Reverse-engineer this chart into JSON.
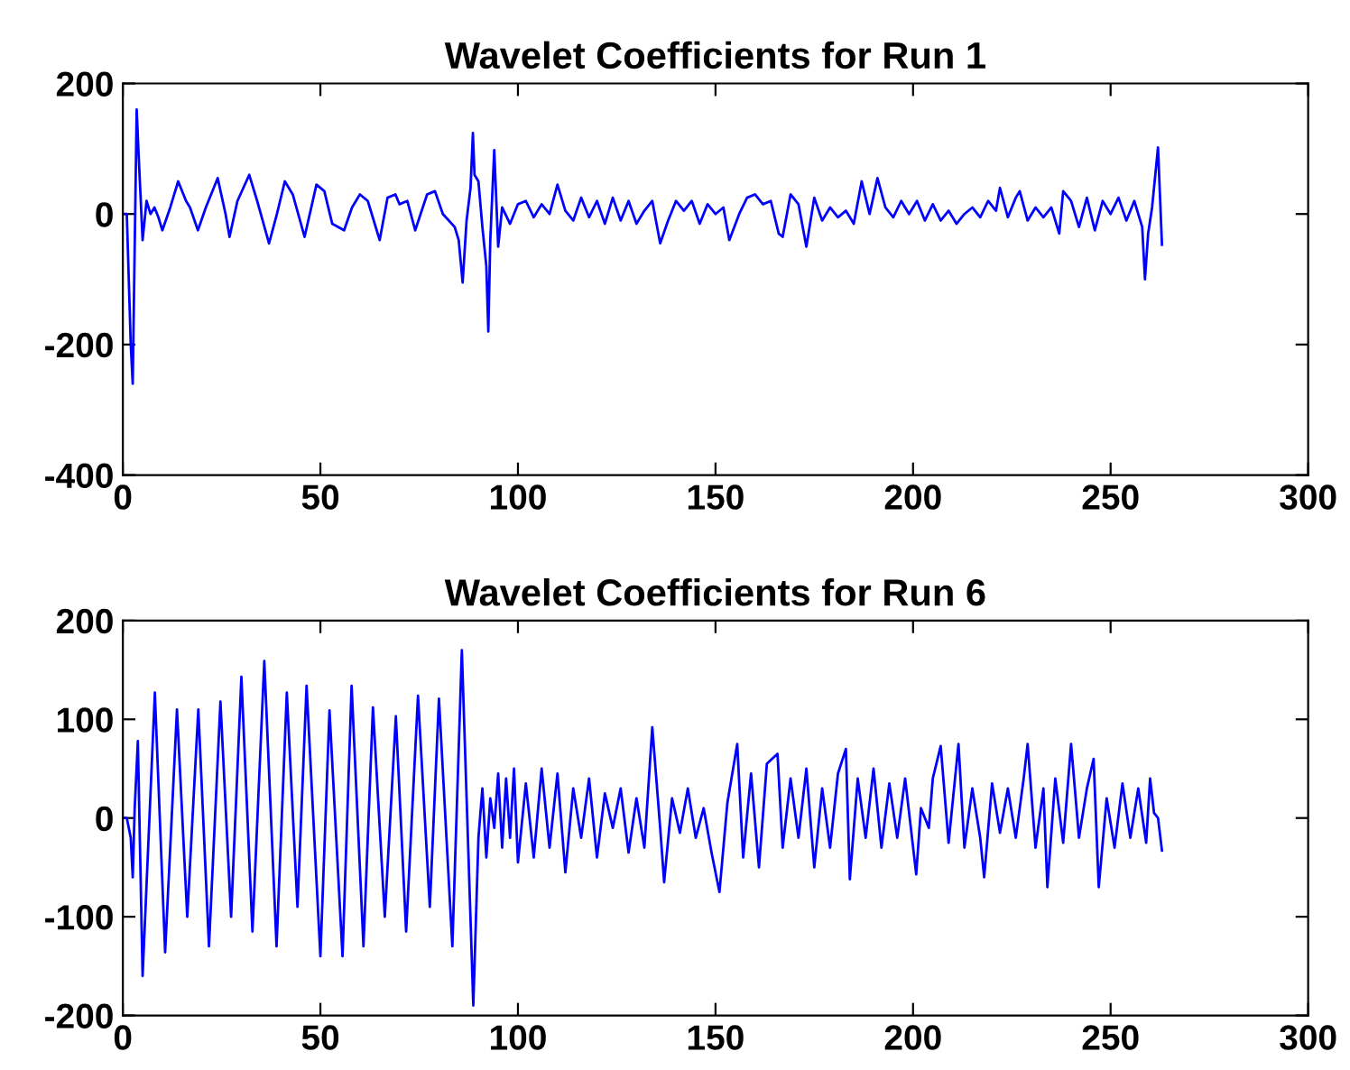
{
  "chart_data": [
    {
      "type": "line",
      "title": "Wavelet Coefficients for Run 1",
      "xlim": [
        0,
        300
      ],
      "xticks": [
        0,
        50,
        100,
        150,
        200,
        250,
        300
      ],
      "ylim": [
        -400,
        200
      ],
      "yticks": [
        -400,
        -200,
        0,
        200
      ],
      "grid": false,
      "series": [
        {
          "color": "#0000ff",
          "x": [
            0,
            1,
            2,
            2.5,
            3,
            3.5,
            4,
            5,
            6,
            7,
            8,
            9,
            10,
            12,
            14,
            16,
            17,
            19,
            21,
            24,
            26,
            27,
            29,
            32,
            34,
            37,
            39,
            41,
            43,
            46,
            49,
            51,
            53,
            56,
            58,
            60,
            62,
            65,
            67,
            69,
            70,
            72,
            74,
            77,
            79,
            81,
            84,
            85,
            86,
            87,
            88,
            88.6,
            89,
            90,
            91,
            92,
            92.5,
            93,
            94,
            95,
            96,
            98,
            100,
            102,
            104,
            106,
            108,
            110,
            112,
            114,
            116,
            118,
            120,
            122,
            124,
            126,
            128,
            130,
            132,
            134,
            136,
            138,
            140,
            142,
            144,
            146,
            148,
            150,
            152,
            153.5,
            156,
            158,
            160,
            162,
            164,
            166,
            167,
            169,
            171,
            173,
            175,
            177,
            179,
            181,
            183,
            185,
            187,
            189,
            191,
            193,
            195,
            197,
            199,
            201,
            203,
            205,
            207,
            209,
            211,
            213,
            215,
            217,
            219,
            221,
            222,
            224,
            226,
            227,
            229,
            231,
            233,
            235,
            237,
            238,
            240,
            242,
            244,
            246,
            248,
            250,
            252,
            254,
            256,
            258,
            258.7,
            259.5,
            260.5,
            262,
            263
          ],
          "values": [
            0,
            0,
            -200,
            -260,
            -50,
            160,
            90,
            -40,
            20,
            0,
            10,
            -5,
            -25,
            10,
            50,
            20,
            10,
            -25,
            10,
            55,
            0,
            -35,
            20,
            60,
            20,
            -45,
            0,
            50,
            30,
            -35,
            45,
            35,
            -15,
            -25,
            10,
            30,
            20,
            -40,
            25,
            30,
            15,
            20,
            -25,
            30,
            35,
            0,
            -20,
            -40,
            -105,
            -10,
            40,
            124,
            60,
            50,
            -20,
            -80,
            -180,
            -40,
            98,
            -50,
            10,
            -15,
            15,
            20,
            -5,
            15,
            0,
            45,
            5,
            -10,
            25,
            -5,
            20,
            -15,
            25,
            -10,
            20,
            -15,
            5,
            20,
            -45,
            -10,
            20,
            5,
            20,
            -15,
            15,
            0,
            10,
            -40,
            0,
            25,
            30,
            15,
            20,
            -30,
            -35,
            30,
            15,
            -50,
            25,
            -10,
            10,
            -5,
            5,
            -15,
            50,
            0,
            55,
            10,
            -5,
            20,
            0,
            20,
            -10,
            15,
            -10,
            5,
            -15,
            0,
            10,
            -5,
            20,
            5,
            40,
            -5,
            25,
            35,
            -10,
            10,
            -5,
            10,
            -30,
            35,
            20,
            -20,
            25,
            -25,
            20,
            0,
            25,
            -10,
            20,
            -20,
            -100,
            -30,
            10,
            102,
            -47
          ]
        }
      ]
    },
    {
      "type": "line",
      "title": "Wavelet Coefficients for Run 6",
      "xlim": [
        0,
        300
      ],
      "xticks": [
        0,
        50,
        100,
        150,
        200,
        250,
        300
      ],
      "ylim": [
        -200,
        200
      ],
      "yticks": [
        -200,
        -100,
        0,
        100,
        200
      ],
      "grid": false,
      "series": [
        {
          "color": "#0000ff",
          "x": [
            0,
            1,
            2,
            2.5,
            3,
            3.8,
            5.0,
            8.1,
            10.7,
            13.7,
            16.3,
            19.1,
            21.8,
            24.7,
            27.4,
            30.0,
            32.8,
            35.8,
            38.9,
            41.5,
            44.2,
            46.5,
            50.0,
            52.3,
            55.6,
            57.9,
            60.9,
            63.3,
            66.3,
            69.1,
            71.7,
            74.7,
            77.7,
            80.0,
            83.4,
            85.8,
            88.7,
            90,
            91,
            92,
            93,
            94,
            95,
            96,
            97,
            98,
            99,
            100,
            102,
            104,
            106,
            108,
            110,
            112,
            114,
            116,
            118,
            120,
            122,
            124,
            126,
            128,
            130,
            132,
            134,
            136,
            137,
            139,
            141,
            143,
            145,
            147,
            149,
            151,
            153,
            155.5,
            157,
            159,
            161,
            163,
            165.7,
            167,
            169,
            171,
            173,
            175,
            177,
            179,
            181,
            183,
            184,
            186,
            188,
            190,
            192,
            194,
            196,
            198,
            200.8,
            202,
            204,
            205,
            207,
            209,
            211.5,
            213,
            215,
            217,
            218,
            220,
            222,
            224,
            226,
            228,
            229,
            231,
            233,
            234,
            236,
            238,
            240,
            242,
            244,
            245.7,
            247,
            249,
            251,
            253,
            255,
            257,
            259,
            260,
            261,
            262,
            263
          ],
          "values": [
            0,
            0,
            -20,
            -60,
            10,
            78,
            -160,
            127,
            -136,
            110,
            -100,
            110,
            -130,
            118,
            -100,
            143,
            -115,
            159,
            -130,
            127,
            -90,
            134,
            -140,
            109,
            -140,
            134,
            -130,
            112,
            -100,
            103,
            -115,
            124,
            -90,
            121,
            -130,
            170,
            -190,
            -20,
            30,
            -40,
            20,
            -10,
            45,
            -30,
            40,
            -20,
            50,
            -45,
            35,
            -40,
            50,
            -30,
            45,
            -55,
            30,
            -20,
            40,
            -40,
            25,
            -10,
            30,
            -35,
            20,
            -30,
            92,
            -10,
            -65,
            20,
            -15,
            30,
            -20,
            10,
            -35,
            -75,
            15,
            75,
            -40,
            45,
            -50,
            55,
            65,
            -30,
            40,
            -20,
            50,
            -50,
            30,
            -30,
            45,
            70,
            -62,
            40,
            -20,
            50,
            -30,
            35,
            -20,
            40,
            -57,
            10,
            -10,
            40,
            73,
            -25,
            75,
            -30,
            30,
            -20,
            -60,
            35,
            -15,
            30,
            -20,
            40,
            75,
            -30,
            30,
            -70,
            40,
            -25,
            75,
            -20,
            30,
            60,
            -70,
            20,
            -30,
            35,
            -20,
            30,
            -25,
            40,
            5,
            0,
            -33
          ]
        }
      ]
    }
  ]
}
